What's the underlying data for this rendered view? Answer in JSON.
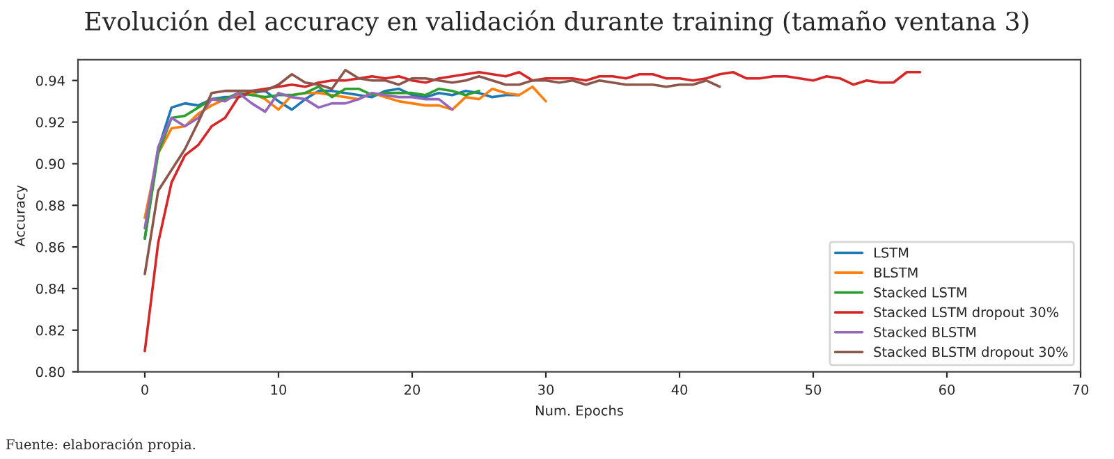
{
  "chart_data": {
    "type": "line",
    "title": "Evolución del accuracy en validación durante training (tamaño ventana 3)",
    "xlabel": "Num. Epochs",
    "ylabel": "Accuracy",
    "annotations": [
      "Fuente: elaboración propia."
    ],
    "series": [
      {
        "name": "LSTM",
        "color": "#1f77b4",
        "x": [
          0,
          1,
          2,
          3,
          4,
          5,
          6,
          7,
          8,
          9,
          10,
          11,
          12,
          13,
          14,
          15,
          16,
          17,
          18,
          19,
          20,
          21,
          22,
          23,
          24,
          25,
          26,
          27,
          28
        ],
        "values": [
          0.864,
          0.907,
          0.927,
          0.929,
          0.928,
          0.931,
          0.932,
          0.932,
          0.934,
          0.935,
          0.93,
          0.926,
          0.931,
          0.935,
          0.935,
          0.934,
          0.933,
          0.932,
          0.935,
          0.936,
          0.933,
          0.932,
          0.934,
          0.933,
          0.935,
          0.934,
          0.932,
          0.933,
          0.933
        ]
      },
      {
        "name": "BLSTM",
        "color": "#ff7f0e",
        "x": [
          0,
          1,
          2,
          3,
          4,
          5,
          6,
          7,
          8,
          9,
          10,
          11,
          12,
          13,
          14,
          15,
          16,
          17,
          18,
          19,
          20,
          21,
          22,
          23,
          24,
          25,
          26,
          27,
          28,
          29,
          30
        ],
        "values": [
          0.874,
          0.905,
          0.917,
          0.918,
          0.924,
          0.928,
          0.931,
          0.933,
          0.934,
          0.931,
          0.926,
          0.933,
          0.934,
          0.934,
          0.933,
          0.932,
          0.931,
          0.934,
          0.932,
          0.93,
          0.929,
          0.928,
          0.928,
          0.926,
          0.932,
          0.931,
          0.936,
          0.934,
          0.933,
          0.937,
          0.93
        ]
      },
      {
        "name": "Stacked LSTM",
        "color": "#2ca02c",
        "x": [
          0,
          1,
          2,
          3,
          4,
          5,
          6,
          7,
          8,
          9,
          10,
          11,
          12,
          13,
          14,
          15,
          16,
          17,
          18,
          19,
          20,
          21,
          22,
          23,
          24,
          25
        ],
        "values": [
          0.864,
          0.905,
          0.922,
          0.923,
          0.927,
          0.931,
          0.931,
          0.934,
          0.933,
          0.932,
          0.933,
          0.933,
          0.934,
          0.937,
          0.932,
          0.936,
          0.936,
          0.933,
          0.934,
          0.934,
          0.934,
          0.933,
          0.936,
          0.935,
          0.933,
          0.935
        ]
      },
      {
        "name": "Stacked LSTM dropout 30%",
        "color": "#d62728",
        "x": [
          0,
          1,
          2,
          3,
          4,
          5,
          6,
          7,
          8,
          9,
          10,
          11,
          12,
          13,
          14,
          15,
          16,
          17,
          18,
          19,
          20,
          21,
          22,
          23,
          24,
          25,
          26,
          27,
          28,
          29,
          30,
          31,
          32,
          33,
          34,
          35,
          36,
          37,
          38,
          39,
          40,
          41,
          42,
          43,
          44,
          45,
          46,
          47,
          48,
          49,
          50,
          51,
          52,
          53,
          54,
          55,
          56,
          57,
          58
        ],
        "values": [
          0.81,
          0.862,
          0.891,
          0.904,
          0.909,
          0.918,
          0.922,
          0.932,
          0.935,
          0.936,
          0.937,
          0.938,
          0.937,
          0.939,
          0.94,
          0.94,
          0.941,
          0.942,
          0.941,
          0.942,
          0.94,
          0.939,
          0.941,
          0.942,
          0.943,
          0.944,
          0.943,
          0.942,
          0.944,
          0.94,
          0.941,
          0.941,
          0.941,
          0.94,
          0.942,
          0.942,
          0.941,
          0.943,
          0.943,
          0.941,
          0.941,
          0.94,
          0.941,
          0.943,
          0.944,
          0.941,
          0.941,
          0.942,
          0.942,
          0.941,
          0.94,
          0.942,
          0.941,
          0.938,
          0.94,
          0.939,
          0.939,
          0.944,
          0.944
        ]
      },
      {
        "name": "Stacked BLSTM",
        "color": "#9467bd",
        "x": [
          0,
          1,
          2,
          3,
          4,
          5,
          6,
          7,
          8,
          9,
          10,
          11,
          12,
          13,
          14,
          15,
          16,
          17,
          18,
          19,
          20,
          21,
          22,
          23
        ],
        "values": [
          0.869,
          0.908,
          0.922,
          0.918,
          0.922,
          0.931,
          0.93,
          0.934,
          0.929,
          0.925,
          0.934,
          0.932,
          0.931,
          0.927,
          0.929,
          0.929,
          0.931,
          0.934,
          0.933,
          0.932,
          0.932,
          0.931,
          0.931,
          0.926
        ]
      },
      {
        "name": "Stacked BLSTM dropout 30%",
        "color": "#8c564b",
        "x": [
          0,
          1,
          2,
          3,
          4,
          5,
          6,
          7,
          8,
          9,
          10,
          11,
          12,
          13,
          14,
          15,
          16,
          17,
          18,
          19,
          20,
          21,
          22,
          23,
          24,
          25,
          26,
          27,
          28,
          29,
          30,
          31,
          32,
          33,
          34,
          35,
          36,
          37,
          38,
          39,
          40,
          41,
          42,
          43
        ],
        "values": [
          0.847,
          0.887,
          0.897,
          0.907,
          0.92,
          0.934,
          0.935,
          0.935,
          0.935,
          0.935,
          0.938,
          0.943,
          0.939,
          0.938,
          0.936,
          0.945,
          0.941,
          0.94,
          0.94,
          0.938,
          0.941,
          0.941,
          0.94,
          0.939,
          0.94,
          0.942,
          0.94,
          0.938,
          0.938,
          0.94,
          0.94,
          0.939,
          0.94,
          0.938,
          0.94,
          0.939,
          0.938,
          0.938,
          0.938,
          0.937,
          0.938,
          0.938,
          0.94,
          0.937
        ]
      }
    ],
    "xlim": [
      -5,
      70
    ],
    "xticks": [
      0,
      10,
      20,
      30,
      40,
      50,
      60,
      70
    ],
    "ylim": [
      0.8,
      0.95
    ],
    "yticks": [
      {
        "value": 0.8,
        "label": "0.80"
      },
      {
        "value": 0.82,
        "label": "0.82"
      },
      {
        "value": 0.84,
        "label": "0.84"
      },
      {
        "value": 0.86,
        "label": "0.86"
      },
      {
        "value": 0.88,
        "label": "0.88"
      },
      {
        "value": 0.9,
        "label": "0.90"
      },
      {
        "value": 0.92,
        "label": "0.92"
      },
      {
        "value": 0.94,
        "label": "0.94"
      }
    ],
    "legend": "bottom right",
    "grid": false,
    "marker": "none",
    "line_style": "solid"
  }
}
